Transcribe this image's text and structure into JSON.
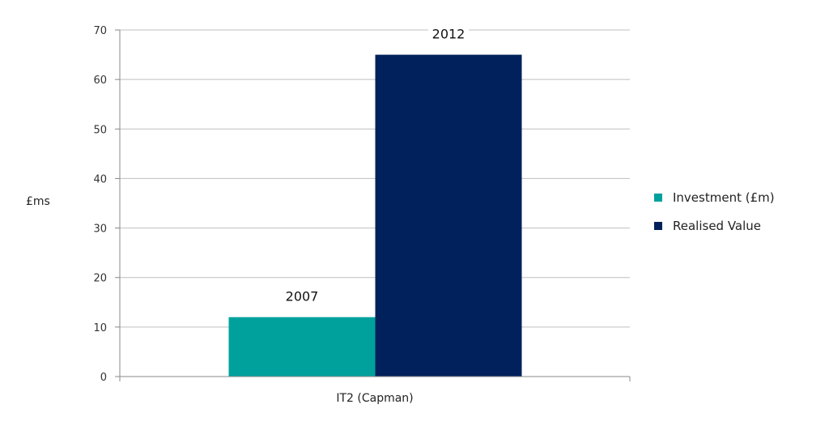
{
  "chart_data": {
    "type": "bar",
    "categories": [
      "IT2 (Capman)"
    ],
    "series": [
      {
        "name": "Investment (£m)",
        "values": [
          12
        ],
        "color": "#00A19D",
        "label": "2007"
      },
      {
        "name": "Realised Value",
        "values": [
          65
        ],
        "color": "#00215B",
        "label": "2012"
      }
    ],
    "title": "",
    "xlabel": "",
    "ylabel": "£ms",
    "ylim": [
      0,
      70
    ],
    "yticks": [
      0,
      10,
      20,
      30,
      40,
      50,
      60,
      70
    ],
    "grid": true,
    "legend_position": "right"
  }
}
